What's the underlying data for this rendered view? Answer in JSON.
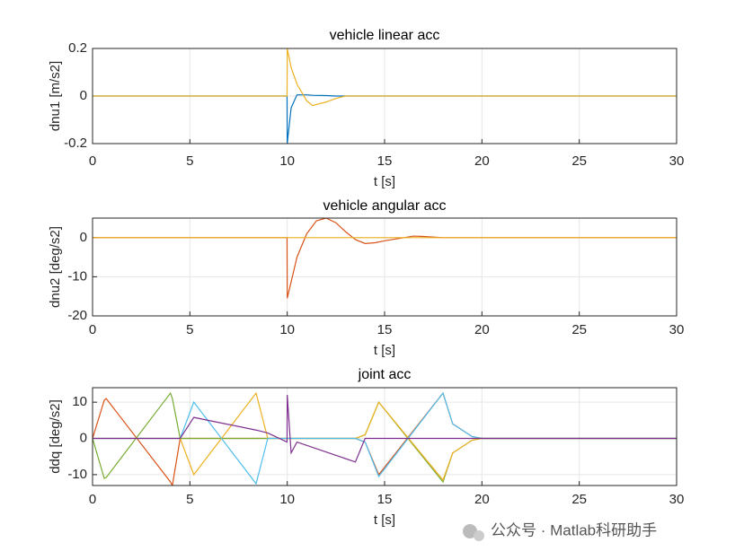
{
  "chart_data": [
    {
      "type": "line",
      "title": "vehicle linear acc",
      "xlabel": "t [s]",
      "ylabel": "dnu1 [m/s2]",
      "x": [
        0,
        5,
        9.99,
        10,
        10.2,
        10.5,
        11,
        11.3,
        12,
        12.5,
        13,
        15,
        20,
        30
      ],
      "series": [
        {
          "color": "#0072BD",
          "values": [
            0,
            0,
            0,
            -0.2,
            -0.05,
            0.005,
            0.005,
            0.003,
            0.002,
            0,
            0,
            0,
            0,
            0
          ]
        },
        {
          "color": "#EDB120",
          "values": [
            0,
            0,
            0,
            0.2,
            0.12,
            0.05,
            -0.02,
            -0.04,
            -0.025,
            -0.01,
            0,
            0,
            0,
            0
          ]
        }
      ],
      "xlim": [
        0,
        30
      ],
      "xticks": [
        0,
        5,
        10,
        15,
        20,
        25,
        30
      ],
      "ylim": [
        -0.2,
        0.2
      ],
      "yticks": [
        -0.2,
        0,
        0.2
      ],
      "grid": true
    },
    {
      "type": "line",
      "title": "vehicle angular acc",
      "xlabel": "t [s]",
      "ylabel": "dnu2 [deg/s2]",
      "x": [
        0,
        5,
        9.99,
        10,
        10.5,
        11,
        11.5,
        12,
        12.5,
        13,
        13.5,
        14,
        14.5,
        15,
        16,
        16.5,
        17,
        18,
        20,
        30
      ],
      "series": [
        {
          "color": "#D95319",
          "values": [
            0,
            0,
            0,
            -15.5,
            -5,
            1,
            4.3,
            5,
            3.8,
            1.5,
            -0.5,
            -1.5,
            -1.3,
            -0.8,
            0,
            0.4,
            0.3,
            0,
            0,
            0
          ]
        },
        {
          "color": "#EDB120",
          "values": [
            0,
            0,
            0,
            0,
            0,
            0,
            0,
            0,
            0,
            0,
            0,
            0,
            0,
            0,
            0,
            0,
            0,
            0,
            0,
            0
          ]
        }
      ],
      "xlim": [
        0,
        30
      ],
      "xticks": [
        0,
        5,
        10,
        15,
        20,
        25,
        30
      ],
      "ylim": [
        -20,
        5
      ],
      "yticks": [
        -20,
        -10,
        0
      ],
      "grid": true
    },
    {
      "type": "line",
      "title": "joint acc",
      "xlabel": "t [s]",
      "ylabel": "ddq [deg/s2]",
      "x": [
        0,
        0.6,
        0.7,
        4.0,
        4.1,
        4.5,
        5.2,
        8.4,
        9.0,
        9.99,
        10,
        10.2,
        10.5,
        13.5,
        14,
        14.7,
        18,
        18.5,
        19.5,
        20,
        30
      ],
      "series": [
        {
          "color": "#D95319",
          "values": [
            0,
            10.5,
            11,
            -12,
            -13,
            0,
            0,
            0,
            0,
            0,
            0,
            0,
            0,
            0,
            -1,
            -10,
            12.5,
            4,
            0.5,
            0,
            0
          ]
        },
        {
          "color": "#77AC30",
          "values": [
            0,
            -11,
            -10.8,
            12.5,
            11,
            0,
            0,
            0,
            0,
            0,
            0,
            0,
            0,
            0,
            1,
            10,
            -12,
            -4,
            -0.5,
            0,
            0
          ]
        },
        {
          "color": "#EDB120",
          "values": [
            0,
            0,
            0,
            0,
            0,
            0,
            -10,
            12.5,
            0,
            0,
            0,
            0,
            0,
            0,
            1,
            10,
            -11.5,
            -4,
            -0.5,
            0,
            0
          ]
        },
        {
          "color": "#4DBEEE",
          "values": [
            0,
            0,
            0,
            0,
            0,
            0,
            10,
            -12.5,
            0,
            0,
            0,
            0,
            0,
            0,
            -1,
            -10.5,
            12.5,
            4,
            0.5,
            0,
            0
          ]
        },
        {
          "color": "#7E2F8E",
          "values": [
            0,
            0,
            0,
            0,
            0,
            0,
            5.8,
            2.3,
            1.5,
            -1,
            12,
            -4,
            -1,
            -6.5,
            0,
            0,
            0,
            0,
            0,
            0,
            0
          ]
        }
      ],
      "xlim": [
        0,
        30
      ],
      "xticks": [
        0,
        5,
        10,
        15,
        20,
        25,
        30
      ],
      "ylim": [
        -13,
        14
      ],
      "yticks": [
        -10,
        0,
        10
      ],
      "grid": true
    }
  ],
  "watermark": "公众号 · Matlab科研助手"
}
